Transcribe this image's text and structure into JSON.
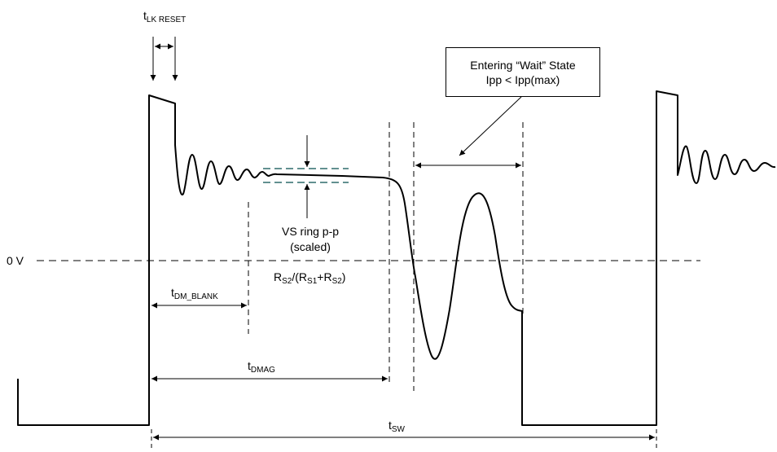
{
  "labels": {
    "zero_volt": "0 V",
    "t_lk_reset": {
      "main": "t",
      "sub": "LK RESET"
    },
    "t_dm_blank": {
      "main": "t",
      "sub": "DM_BLANK"
    },
    "t_dmag": {
      "main": "t",
      "sub": "DMAG"
    },
    "t_sw": {
      "main": "t",
      "sub": "SW"
    },
    "vs_ring_line1": "VS ring p-p",
    "vs_ring_line2": "(scaled)",
    "ratio": {
      "r": "R",
      "s2": "S2",
      "mid": "/(R",
      "s1": "S1",
      "plus": "+R",
      "s2b": "S2",
      "end": ")"
    }
  },
  "callout": {
    "line1": "Entering “Wait” State",
    "line2": "Ipp < Ipp(max)"
  },
  "colors": {
    "waveform": "#000000",
    "ring_band": "#2f6b6b",
    "dashed": "#000000"
  }
}
